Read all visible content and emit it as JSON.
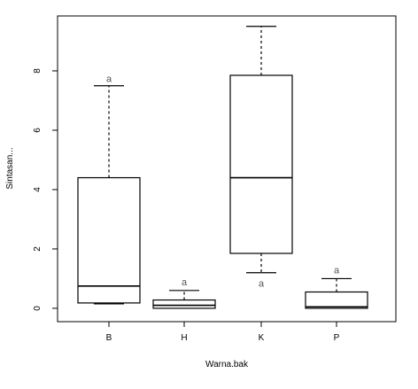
{
  "chart_data": {
    "type": "boxplot",
    "xlabel": "Warna.bak",
    "ylabel": "Sintasan...",
    "ylim": [
      -0.45,
      9.85
    ],
    "yticks": [
      0,
      2,
      4,
      6,
      8
    ],
    "categories": [
      "B",
      "H",
      "K",
      "P"
    ],
    "boxes": [
      {
        "category": "B",
        "whisker_low": 0.15,
        "q1": 0.18,
        "median": 0.75,
        "q3": 4.4,
        "whisker_high": 7.5,
        "annotation": "a",
        "annotation_at": 7.75
      },
      {
        "category": "H",
        "whisker_low": 0.0,
        "q1": 0.0,
        "median": 0.1,
        "q3": 0.28,
        "whisker_high": 0.6,
        "annotation": "a",
        "annotation_at": 0.9
      },
      {
        "category": "K",
        "whisker_low": 1.2,
        "q1": 1.85,
        "median": 4.4,
        "q3": 7.85,
        "whisker_high": 9.5,
        "annotation": "a",
        "annotation_at": 0.85
      },
      {
        "category": "P",
        "whisker_low": 0.0,
        "q1": 0.0,
        "median": 0.05,
        "q3": 0.55,
        "whisker_high": 1.0,
        "annotation": "a",
        "annotation_at": 1.3
      }
    ]
  }
}
